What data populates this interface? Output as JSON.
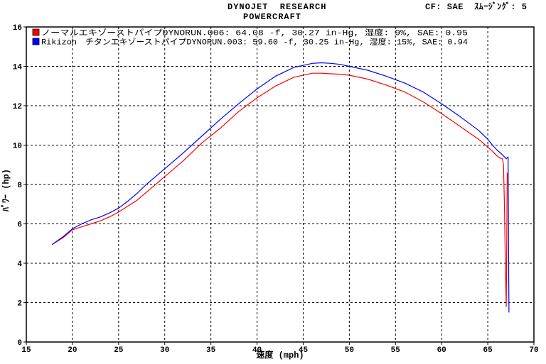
{
  "header": {
    "title_line1": "DYNOJET  RESEARCH",
    "title_line2": "POWERCRAFT",
    "cf_info": "CF: SAE  ｽﾑｰｼﾞﾝｸﾞ: 5"
  },
  "chart_data": {
    "type": "line",
    "xlabel": "速度 (mph)",
    "ylabel": "ﾊﾟﾜｰ (hp)",
    "xlim": [
      15,
      70
    ],
    "ylim": [
      0,
      16
    ],
    "xticks": [
      15,
      20,
      25,
      30,
      35,
      40,
      45,
      50,
      55,
      60,
      65,
      70
    ],
    "yticks": [
      0,
      2,
      4,
      6,
      8,
      10,
      12,
      14,
      16
    ],
    "grid": true,
    "legend_position": "top-left",
    "series": [
      {
        "name": "ノーマルエキゾーストパイプDYNORUN.006: 64.08 -f, 30.27 in-Hg, 湿度: 9%, SAE: 0.95",
        "color": "#ff0000",
        "x": [
          17.8,
          19,
          20,
          21,
          22,
          23,
          24,
          25,
          26,
          27,
          28,
          30,
          32,
          34,
          36,
          38,
          40,
          42,
          44,
          46,
          47,
          48,
          49,
          50,
          52,
          54,
          56,
          58,
          60,
          62,
          64,
          65,
          65.5,
          66,
          66.3,
          66.6,
          66.7,
          66.8,
          66.9,
          67.0,
          67.05,
          67.1
        ],
        "values": [
          4.95,
          5.3,
          5.7,
          5.85,
          6.0,
          6.15,
          6.35,
          6.6,
          6.9,
          7.2,
          7.6,
          8.4,
          9.2,
          10.1,
          10.85,
          11.7,
          12.4,
          13.0,
          13.45,
          13.65,
          13.65,
          13.62,
          13.6,
          13.55,
          13.35,
          13.05,
          12.7,
          12.2,
          11.6,
          10.95,
          10.3,
          9.9,
          9.7,
          9.45,
          9.35,
          9.3,
          9.0,
          7.0,
          4.0,
          1.8,
          4.5,
          8.6
        ]
      },
      {
        "name": "Rikizoh　チタンエキゾーストパイプDYNORUN.003: 59.60 -f, 30.25 in-Hg, 湿度: 15%, SAE: 0.94",
        "color": "#0000ff",
        "x": [
          17.8,
          19,
          20,
          21,
          22,
          23,
          24,
          25,
          26,
          27,
          28,
          30,
          32,
          34,
          36,
          38,
          40,
          42,
          44,
          46,
          47,
          48,
          49,
          50,
          52,
          54,
          56,
          58,
          60,
          62,
          64,
          65,
          65.5,
          66,
          66.5,
          66.8,
          67.0,
          67.2,
          67.25,
          67.3
        ],
        "values": [
          4.95,
          5.35,
          5.75,
          6.0,
          6.2,
          6.35,
          6.55,
          6.8,
          7.15,
          7.55,
          8.0,
          8.8,
          9.6,
          10.45,
          11.3,
          12.1,
          12.85,
          13.5,
          13.95,
          14.15,
          14.18,
          14.15,
          14.1,
          14.0,
          13.8,
          13.5,
          13.15,
          12.7,
          12.1,
          11.45,
          10.75,
          10.3,
          10.0,
          9.75,
          9.55,
          9.4,
          9.3,
          9.4,
          5.0,
          1.5
        ]
      }
    ]
  }
}
